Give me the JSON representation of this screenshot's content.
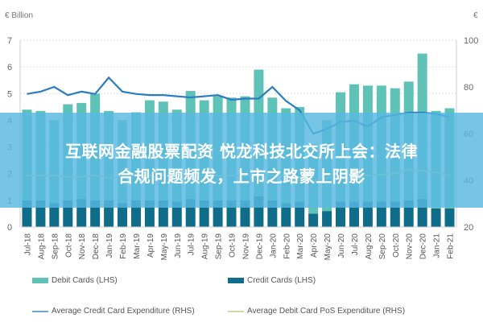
{
  "chart_data": {
    "type": "bar",
    "left_axis_unit": "€ Billion",
    "right_axis_unit": "€",
    "ylim_left": [
      0,
      7
    ],
    "yticks_left": [
      0,
      1,
      2,
      3,
      4,
      5,
      6,
      7
    ],
    "ylim_right": [
      20,
      100
    ],
    "yticks_right": [
      20,
      40,
      60,
      80,
      100
    ],
    "grid": true,
    "legend_position": "bottom",
    "categories": [
      "Jul-18",
      "Aug-18",
      "Sep-18",
      "Oct-18",
      "Nov-18",
      "Dec-18",
      "Jan-19",
      "Feb-19",
      "Mar-19",
      "Apr-19",
      "May-19",
      "Jun-19",
      "Jul-19",
      "Aug-19",
      "Sep-19",
      "Oct-19",
      "Nov-19",
      "Dec-19",
      "Jan-20",
      "Feb-20",
      "Mar-20",
      "Apr-20",
      "May-20",
      "Jun-20",
      "Jul-20",
      "Aug-20",
      "Sep-20",
      "Oct-20",
      "Nov-20",
      "Dec-20",
      "Jan-21",
      "Feb-21"
    ],
    "series": [
      {
        "name": "Debit Cards (LHS)",
        "type": "bar",
        "stacked": true,
        "axis": "left",
        "color": "#5fc2b6",
        "values": [
          3.4,
          3.35,
          3.1,
          3.6,
          3.6,
          4.0,
          3.35,
          3.1,
          3.3,
          3.75,
          3.7,
          3.45,
          4.05,
          3.75,
          3.9,
          3.85,
          3.9,
          4.75,
          3.85,
          3.55,
          3.55,
          2.6,
          3.4,
          4.1,
          4.4,
          4.35,
          4.35,
          4.25,
          4.45,
          5.45,
          3.65,
          3.75
        ]
      },
      {
        "name": "Credit Cards (LHS)",
        "type": "bar",
        "stacked": true,
        "axis": "left",
        "color": "#0f6d8a",
        "values": [
          1.0,
          1.0,
          0.9,
          1.0,
          1.05,
          1.0,
          1.0,
          0.9,
          1.0,
          1.0,
          1.0,
          0.95,
          1.05,
          1.0,
          1.0,
          1.0,
          1.0,
          1.15,
          1.0,
          0.9,
          0.95,
          0.5,
          0.6,
          0.95,
          0.95,
          0.95,
          0.95,
          0.95,
          1.0,
          1.05,
          0.7,
          0.7
        ]
      },
      {
        "name": "Average Credit Card Expenditure (RHS)",
        "type": "line",
        "axis": "right",
        "color": "#2b7cc0",
        "values": [
          77,
          78,
          80,
          76.5,
          78,
          77,
          84,
          78,
          77,
          76.5,
          76.5,
          76,
          75.5,
          76,
          76.5,
          74.5,
          75,
          75,
          80,
          74,
          70,
          60,
          62,
          65,
          65.5,
          63,
          67,
          68,
          69,
          69,
          68.5,
          67
        ]
      },
      {
        "name": "Average Debit Card PoS Expenditure (RHS)",
        "type": "line",
        "axis": "right",
        "color": "#c9dca6",
        "values": [
          42,
          42,
          42,
          41.5,
          41.5,
          42,
          41,
          41.5,
          42,
          42,
          42,
          42,
          42,
          42,
          42,
          42,
          42,
          42.5,
          42,
          42,
          41.5,
          40,
          41,
          41.5,
          42,
          42,
          42.5,
          43,
          44.5,
          44,
          43.5,
          42
        ]
      }
    ]
  },
  "overlay": {
    "line1": "互联网金融股票配资 悦龙科技北交所上会：法律",
    "line2": "合规问题频发，上市之路蒙上阴影"
  }
}
